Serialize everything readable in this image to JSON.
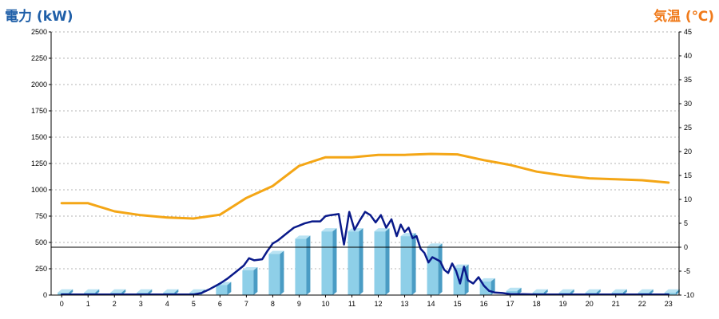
{
  "chart_data": {
    "type": "bar",
    "title": "",
    "left_axis_title": "電力 (kW)",
    "right_axis_title": "気温 (℃)",
    "left_axis_color": "#1f5fa8",
    "right_axis_color": "#f07a1a",
    "ylim_left": [
      0,
      2500
    ],
    "ylim_right": [
      -10,
      45
    ],
    "left_ticks": [
      "0",
      "250",
      "500",
      "750",
      "1000",
      "1250",
      "1500",
      "1750",
      "2000",
      "2250",
      "2500"
    ],
    "right_ticks": [
      "-10",
      "-5",
      "0",
      "5",
      "10",
      "15",
      "20",
      "25",
      "30",
      "35",
      "40",
      "45"
    ],
    "x_ticks": [
      "0",
      "1",
      "2",
      "3",
      "4",
      "5",
      "6",
      "7",
      "8",
      "9",
      "10",
      "11",
      "12",
      "13",
      "14",
      "15",
      "16",
      "17",
      "18",
      "19",
      "20",
      "21",
      "22",
      "23"
    ],
    "grid": true,
    "reference_line_right": 0,
    "series": [
      {
        "type": "bar",
        "color": "#8ecfe8",
        "x": [
          0,
          1,
          2,
          3,
          4,
          5,
          6,
          7,
          8,
          9,
          10,
          11,
          12,
          13,
          14,
          15,
          16,
          17,
          18,
          19,
          20,
          21,
          22,
          23
        ],
        "values": [
          25,
          25,
          25,
          25,
          25,
          25,
          95,
          235,
          390,
          535,
          605,
          605,
          605,
          560,
          460,
          260,
          130,
          40,
          25,
          25,
          25,
          25,
          25,
          25
        ]
      },
      {
        "type": "line",
        "axis": "left",
        "color": "#0a1a8a",
        "x": [
          0,
          1,
          2,
          3,
          4,
          5,
          5.3,
          5.6,
          6,
          6.3,
          6.6,
          6.9,
          7.1,
          7.3,
          7.6,
          7.8,
          8,
          8.2,
          8.5,
          8.8,
          9,
          9.2,
          9.5,
          9.8,
          10,
          10.2,
          10.5,
          10.7,
          10.9,
          11.1,
          11.3,
          11.5,
          11.7,
          11.9,
          12.1,
          12.3,
          12.5,
          12.7,
          12.85,
          13,
          13.15,
          13.3,
          13.45,
          13.6,
          13.75,
          13.9,
          14.05,
          14.2,
          14.35,
          14.5,
          14.65,
          14.8,
          14.95,
          15.1,
          15.25,
          15.4,
          15.6,
          15.8,
          16,
          16.2,
          16.4,
          16.7,
          17,
          17.5,
          18,
          19,
          20,
          21,
          22,
          23
        ],
        "values": [
          5,
          5,
          5,
          5,
          5,
          5,
          20,
          55,
          110,
          160,
          220,
          280,
          350,
          330,
          340,
          420,
          490,
          520,
          580,
          640,
          660,
          680,
          700,
          700,
          750,
          760,
          770,
          480,
          790,
          620,
          710,
          790,
          760,
          690,
          760,
          640,
          720,
          560,
          670,
          600,
          640,
          540,
          560,
          440,
          400,
          310,
          360,
          340,
          320,
          240,
          210,
          300,
          230,
          110,
          270,
          140,
          110,
          170,
          90,
          40,
          25,
          20,
          10,
          8,
          5,
          5,
          5,
          5,
          5,
          5
        ]
      },
      {
        "type": "line",
        "axis": "right",
        "color": "#f4a616",
        "x": [
          0,
          1,
          2,
          3,
          4,
          5,
          6,
          7,
          8,
          9,
          10,
          11,
          12,
          13,
          14,
          15,
          16,
          17,
          18,
          19,
          20,
          21,
          22,
          23
        ],
        "values": [
          9.2,
          9.2,
          7.5,
          6.7,
          6.2,
          6.0,
          6.8,
          10.3,
          12.8,
          17.0,
          18.8,
          18.8,
          19.3,
          19.3,
          19.5,
          19.4,
          18.2,
          17.2,
          15.8,
          15.0,
          14.4,
          14.2,
          14.0,
          13.5
        ]
      }
    ]
  }
}
